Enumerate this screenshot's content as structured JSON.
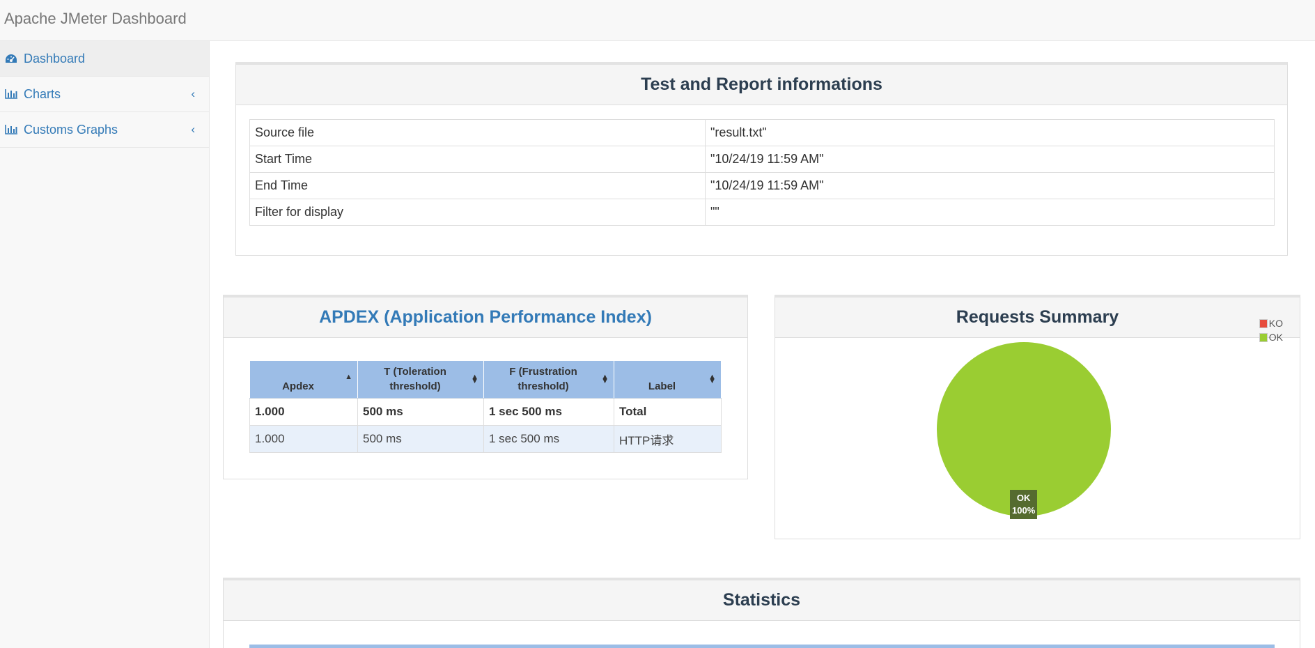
{
  "navbar": {
    "brand": "Apache JMeter Dashboard"
  },
  "sidebar": {
    "items": [
      {
        "label": "Dashboard",
        "icon": "dashboard-icon",
        "active": true
      },
      {
        "label": "Charts",
        "icon": "bar-chart-icon",
        "expandable": true
      },
      {
        "label": "Customs Graphs",
        "icon": "bar-chart-icon",
        "expandable": true
      }
    ]
  },
  "test_info": {
    "title": "Test and Report informations",
    "rows": [
      {
        "key": "Source file",
        "value": "\"result.txt\""
      },
      {
        "key": "Start Time",
        "value": "\"10/24/19 11:59 AM\""
      },
      {
        "key": "End Time",
        "value": "\"10/24/19 11:59 AM\""
      },
      {
        "key": "Filter for display",
        "value": "\"\""
      }
    ]
  },
  "apdex": {
    "title": "APDEX (Application Performance Index)",
    "columns": [
      "Apdex",
      "T (Toleration threshold)",
      "F (Frustration threshold)",
      "Label"
    ],
    "total_row": [
      "1.000",
      "500 ms",
      "1 sec 500 ms",
      "Total"
    ],
    "rows": [
      [
        "1.000",
        "500 ms",
        "1 sec 500 ms",
        "HTTP请求"
      ]
    ]
  },
  "requests_summary": {
    "title": "Requests Summary",
    "legend": [
      {
        "label": "KO",
        "color": "#e74c3c"
      },
      {
        "label": "OK",
        "color": "#9acd32"
      }
    ],
    "slice_label": {
      "name": "OK",
      "percent": "100%"
    }
  },
  "statistics": {
    "title": "Statistics"
  },
  "chart_data": {
    "type": "pie",
    "title": "Requests Summary",
    "categories": [
      "KO",
      "OK"
    ],
    "values": [
      0,
      100
    ],
    "colors": [
      "#e74c3c",
      "#9acd32"
    ],
    "legend": "top-right"
  }
}
